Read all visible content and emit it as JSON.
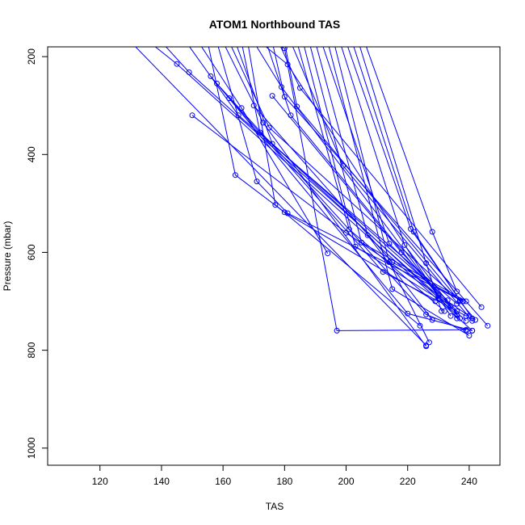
{
  "chart_data": {
    "type": "line",
    "title": "ATOM1 Northbound TAS",
    "xlabel": "TAS",
    "ylabel": "Pressure (mbar)",
    "xlim": [
      103,
      250
    ],
    "ylim": [
      1035,
      180
    ],
    "y_reversed": true,
    "x_ticks": [
      120,
      140,
      160,
      180,
      200,
      220,
      240
    ],
    "y_ticks": [
      200,
      400,
      600,
      800,
      1000
    ],
    "x_tick_labels": [
      "120",
      "140",
      "160",
      "180",
      "200",
      "220",
      "240"
    ],
    "y_tick_labels": [
      "200",
      "400",
      "600",
      "800",
      "1000"
    ],
    "grid": false,
    "color": "#0000ff",
    "marker": "open-circle",
    "series": [
      {
        "x": [
          130,
          226
        ],
        "y": [
          170,
          790
        ]
      },
      {
        "x": [
          136,
          145,
          241
        ],
        "y": [
          170,
          215,
          760
        ]
      },
      {
        "x": [
          140,
          149,
          239
        ],
        "y": [
          170,
          232,
          740
        ]
      },
      {
        "x": [
          148,
          165,
          236
        ],
        "y": [
          170,
          320,
          705
        ]
      },
      {
        "x": [
          152,
          166,
          194
        ],
        "y": [
          170,
          305,
          602
        ]
      },
      {
        "x": [
          155,
          164,
          180,
          229
        ],
        "y": [
          170,
          442,
          518,
          700
        ]
      },
      {
        "x": [
          158,
          171,
          181,
          238
        ],
        "y": [
          170,
          455,
          520,
          700
        ]
      },
      {
        "x": [
          160,
          173,
          226
        ],
        "y": [
          170,
          335,
          792
        ]
      },
      {
        "x": [
          162,
          175,
          237
        ],
        "y": [
          170,
          345,
          700
        ]
      },
      {
        "x": [
          164,
          176,
          233
        ],
        "y": [
          170,
          378,
          698
        ]
      },
      {
        "x": [
          166,
          172,
          236
        ],
        "y": [
          170,
          355,
          728
        ]
      },
      {
        "x": [
          168,
          177,
          224
        ],
        "y": [
          170,
          503,
          750
        ]
      },
      {
        "x": [
          170,
          179,
          230
        ],
        "y": [
          170,
          262,
          688
        ]
      },
      {
        "x": [
          172,
          181,
          234
        ],
        "y": [
          170,
          216,
          730
        ]
      },
      {
        "x": [
          174,
          182,
          236
        ],
        "y": [
          170,
          320,
          735
        ]
      },
      {
        "x": [
          176,
          180,
          246
        ],
        "y": [
          170,
          282,
          750
        ]
      },
      {
        "x": [
          178,
          185,
          244
        ],
        "y": [
          170,
          264,
          712
        ]
      },
      {
        "x": [
          180,
          184,
          242
        ],
        "y": [
          170,
          302,
          738
        ]
      },
      {
        "x": [
          175,
          180,
          197,
          239
        ],
        "y": [
          170,
          183,
          760,
          758
        ]
      },
      {
        "x": [
          182,
          199,
          241
        ],
        "y": [
          170,
          423,
          740
        ]
      },
      {
        "x": [
          184,
          201,
          232
        ],
        "y": [
          170,
          553,
          720
        ]
      },
      {
        "x": [
          186,
          203,
          230
        ],
        "y": [
          170,
          588,
          695
        ]
      },
      {
        "x": [
          188,
          205,
          239
        ],
        "y": [
          170,
          580,
          700
        ]
      },
      {
        "x": [
          190,
          207,
          228
        ],
        "y": [
          170,
          565,
          738
        ]
      },
      {
        "x": [
          192,
          214,
          234
        ],
        "y": [
          170,
          582,
          710
        ]
      },
      {
        "x": [
          194,
          215,
          240
        ],
        "y": [
          170,
          675,
          770
        ]
      },
      {
        "x": [
          196,
          214,
          227
        ],
        "y": [
          170,
          620,
          784
        ]
      },
      {
        "x": [
          198,
          219,
          237
        ],
        "y": [
          170,
          585,
          735
        ]
      },
      {
        "x": [
          200,
          221,
          237
        ],
        "y": [
          170,
          552,
          698
        ]
      },
      {
        "x": [
          202,
          222,
          241
        ],
        "y": [
          170,
          558,
          735
        ]
      },
      {
        "x": [
          204,
          226,
          231
        ],
        "y": [
          170,
          622,
          720
        ]
      },
      {
        "x": [
          206,
          228,
          236
        ],
        "y": [
          170,
          558,
          680
        ]
      },
      {
        "x": [
          156,
          220,
          241
        ],
        "y": [
          240,
          725,
          760
        ]
      },
      {
        "x": [
          158,
          226,
          239
        ],
        "y": [
          255,
          727,
          760
        ]
      },
      {
        "x": [
          162,
          212,
          239
        ],
        "y": [
          285,
          640,
          730
        ]
      },
      {
        "x": [
          150,
          200,
          240
        ],
        "y": [
          320,
          560,
          730
        ]
      },
      {
        "x": [
          170,
          215,
          238
        ],
        "y": [
          300,
          620,
          700
        ]
      },
      {
        "x": [
          176,
          218,
          236
        ],
        "y": [
          280,
          600,
          720
        ]
      }
    ]
  }
}
